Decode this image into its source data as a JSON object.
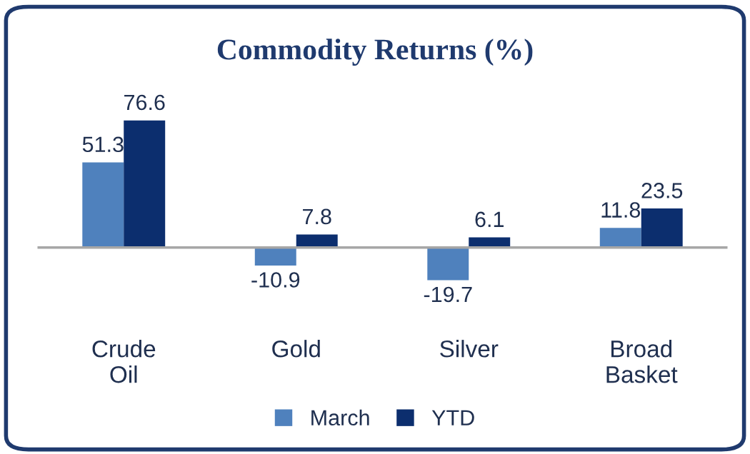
{
  "chart_data": {
    "type": "bar",
    "title": "Commodity Returns (%)",
    "categories": [
      "Crude Oil",
      "Gold",
      "Silver",
      "Broad Basket"
    ],
    "series": [
      {
        "name": "March",
        "color": "#4f81bd",
        "values": [
          51.3,
          -10.9,
          -19.7,
          11.8
        ]
      },
      {
        "name": "YTD",
        "color": "#0c2e6e",
        "values": [
          76.6,
          7.8,
          6.1,
          23.5
        ]
      }
    ],
    "data_labels": true,
    "legend": "bottom"
  }
}
